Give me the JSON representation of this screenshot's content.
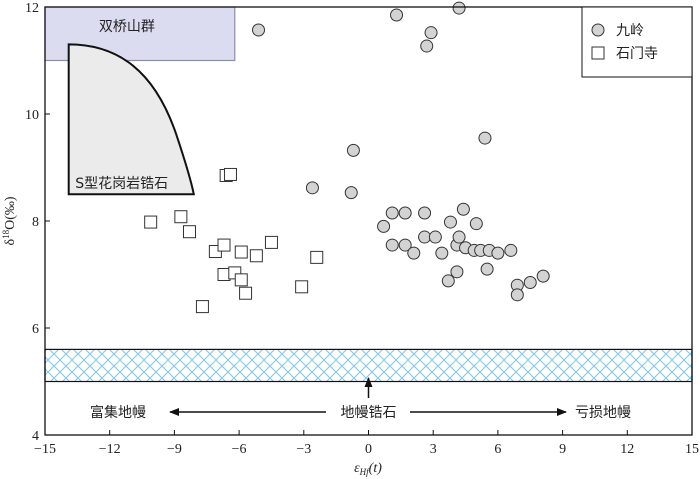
{
  "chart_data": {
    "type": "scatter",
    "xlabel": "εHf(t)",
    "ylabel": "δ18O(‰)",
    "xlim": [
      -15,
      15
    ],
    "ylim": [
      4,
      12
    ],
    "xticks": [
      "−15",
      "−12",
      "−9",
      "−6",
      "−3",
      "0",
      "3",
      "6",
      "9",
      "12",
      "15"
    ],
    "yticks": [
      "4",
      "6",
      "8",
      "10",
      "12"
    ],
    "legend_position": "top-right",
    "series": [
      {
        "name": "九岭",
        "marker": "circle",
        "points": [
          [
            1.3,
            11.85
          ],
          [
            4.2,
            11.98
          ],
          [
            2.7,
            11.27
          ],
          [
            2.9,
            11.52
          ],
          [
            -5.1,
            11.57
          ],
          [
            5.4,
            9.55
          ],
          [
            -0.7,
            9.32
          ],
          [
            -2.6,
            8.62
          ],
          [
            -0.8,
            8.53
          ],
          [
            0.7,
            7.9
          ],
          [
            1.1,
            8.15
          ],
          [
            1.7,
            8.15
          ],
          [
            2.6,
            8.15
          ],
          [
            3.8,
            7.98
          ],
          [
            4.4,
            8.22
          ],
          [
            5.0,
            7.95
          ],
          [
            1.1,
            7.55
          ],
          [
            1.7,
            7.55
          ],
          [
            2.1,
            7.4
          ],
          [
            2.6,
            7.7
          ],
          [
            3.1,
            7.7
          ],
          [
            3.4,
            7.4
          ],
          [
            4.1,
            7.55
          ],
          [
            4.2,
            7.7
          ],
          [
            4.5,
            7.5
          ],
          [
            4.9,
            7.45
          ],
          [
            5.2,
            7.45
          ],
          [
            5.6,
            7.45
          ],
          [
            6.0,
            7.4
          ],
          [
            6.6,
            7.45
          ],
          [
            5.5,
            7.1
          ],
          [
            4.1,
            7.05
          ],
          [
            3.7,
            6.88
          ],
          [
            6.9,
            6.8
          ],
          [
            7.5,
            6.85
          ],
          [
            8.1,
            6.97
          ],
          [
            6.9,
            6.62
          ]
        ]
      },
      {
        "name": "石门寺",
        "marker": "square",
        "points": [
          [
            -6.6,
            8.85
          ],
          [
            -6.4,
            8.87
          ],
          [
            -10.1,
            7.98
          ],
          [
            -8.7,
            8.08
          ],
          [
            -8.3,
            7.8
          ],
          [
            -7.1,
            7.43
          ],
          [
            -6.7,
            7.55
          ],
          [
            -5.9,
            7.42
          ],
          [
            -5.2,
            7.35
          ],
          [
            -4.5,
            7.6
          ],
          [
            -2.4,
            7.32
          ],
          [
            -6.7,
            7.0
          ],
          [
            -6.2,
            7.03
          ],
          [
            -5.9,
            6.9
          ],
          [
            -5.7,
            6.65
          ],
          [
            -3.1,
            6.77
          ],
          [
            -7.7,
            6.4
          ]
        ]
      }
    ],
    "regions": [
      {
        "label": "双桥山群",
        "x": [
          -15,
          -6.2
        ],
        "y": [
          11,
          12
        ],
        "fill": "#dcdcf0",
        "stroke": "#8e8ea8"
      },
      {
        "label": "S型花岗岩锆石",
        "fill": "#ebebeb",
        "stroke": "#111111"
      },
      {
        "label": "地幔锆石",
        "x": [
          -15,
          15
        ],
        "y": [
          5.0,
          5.6
        ],
        "fill": "#ffffff",
        "hatch": "#7fc7e8"
      }
    ],
    "annotations": {
      "enriched": "富集地幔",
      "mantle": "地幔锆石",
      "depleted": "亏损地幔"
    }
  }
}
